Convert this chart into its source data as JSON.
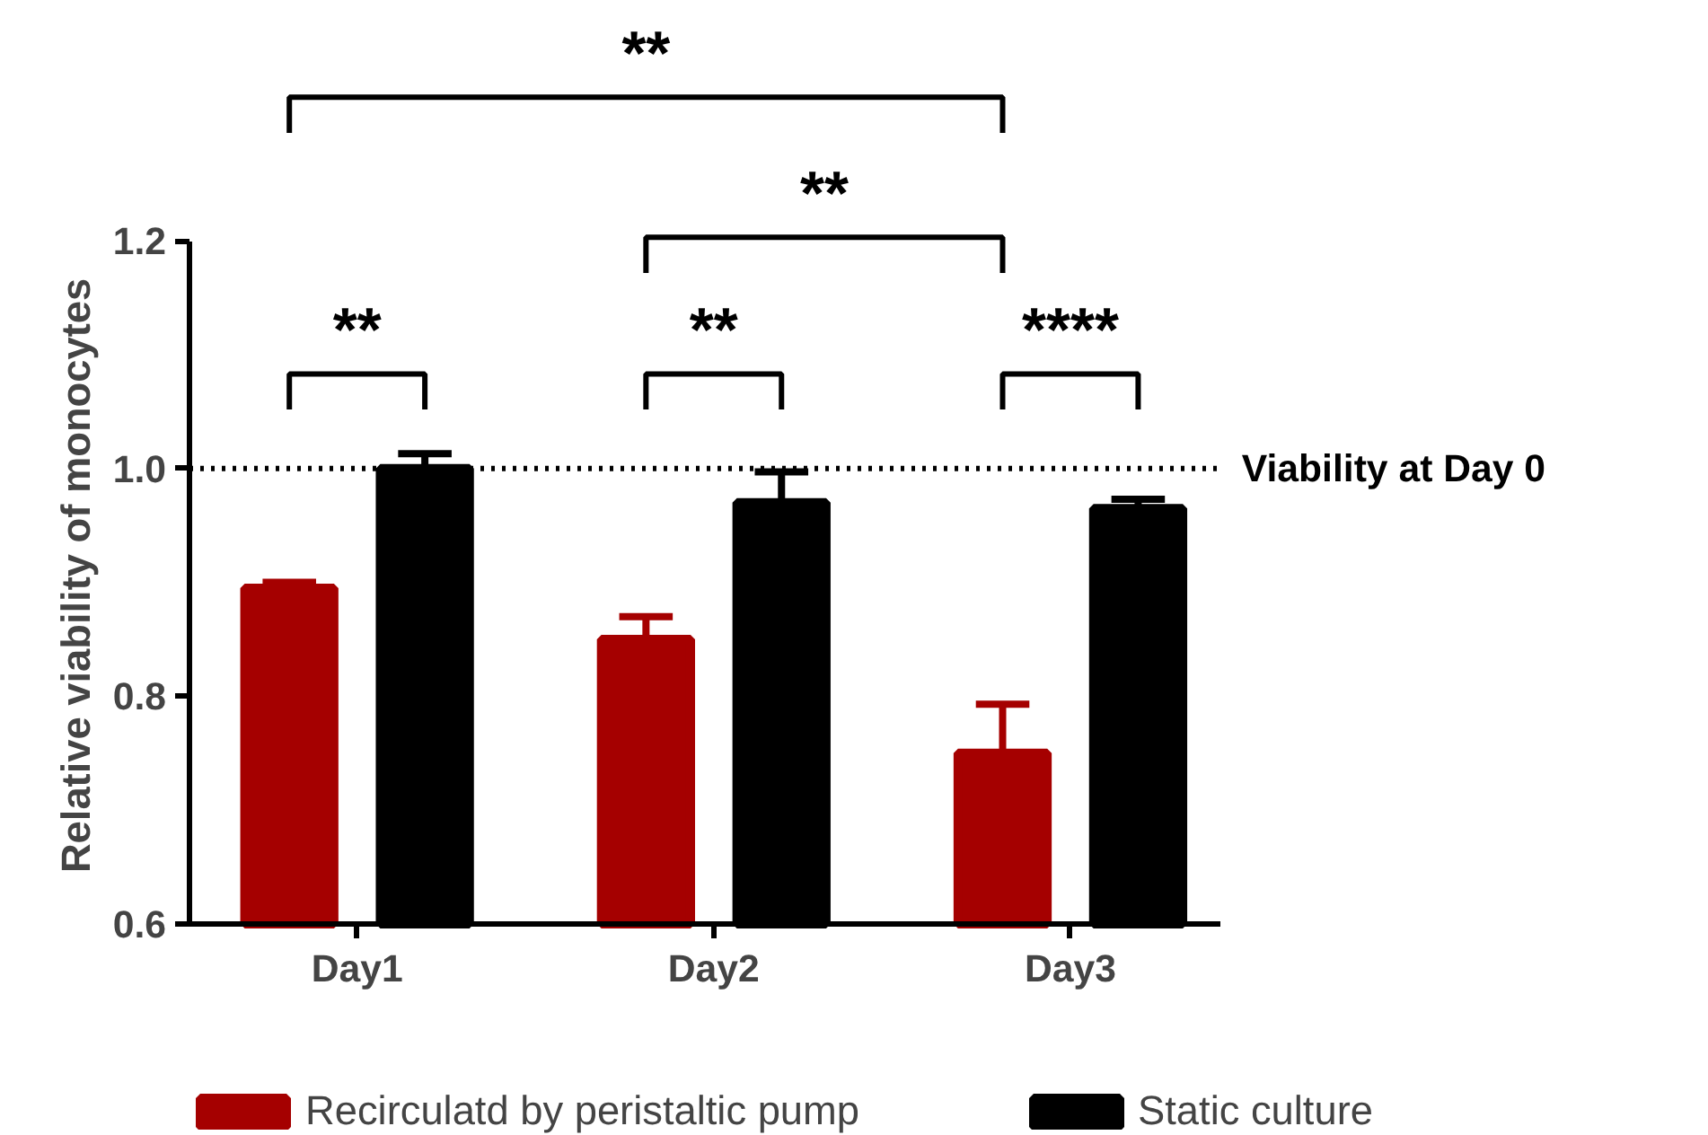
{
  "chart_data": {
    "type": "bar",
    "categories": [
      "Day1",
      "Day2",
      "Day3"
    ],
    "ylabel": "Relative viability of monocytes",
    "ylim": [
      0.6,
      1.2
    ],
    "yticks": [
      {
        "value": 0.6,
        "label": "0.6"
      },
      {
        "value": 0.8,
        "label": "0.8"
      },
      {
        "value": 1.0,
        "label": "1.0"
      },
      {
        "value": 1.2,
        "label": "1.2"
      }
    ],
    "series": [
      {
        "name": "Recirculatd by peristaltic pump",
        "color": "#a50000",
        "values": [
          0.895,
          0.85,
          0.75
        ],
        "errors": [
          0.005,
          0.02,
          0.043
        ]
      },
      {
        "name": "Static culture",
        "color": "#000000",
        "values": [
          1.0,
          0.97,
          0.965
        ],
        "errors": [
          0.013,
          0.027,
          0.008
        ]
      }
    ],
    "ref_lines": [
      {
        "axis": "y",
        "value": 1.0,
        "label": "Viability at Day 0",
        "color": "#000000",
        "line_style": "dotted"
      }
    ],
    "annotations": [
      "**",
      "**",
      "****",
      "**",
      "**"
    ],
    "legend": "bottom",
    "grid": false
  }
}
